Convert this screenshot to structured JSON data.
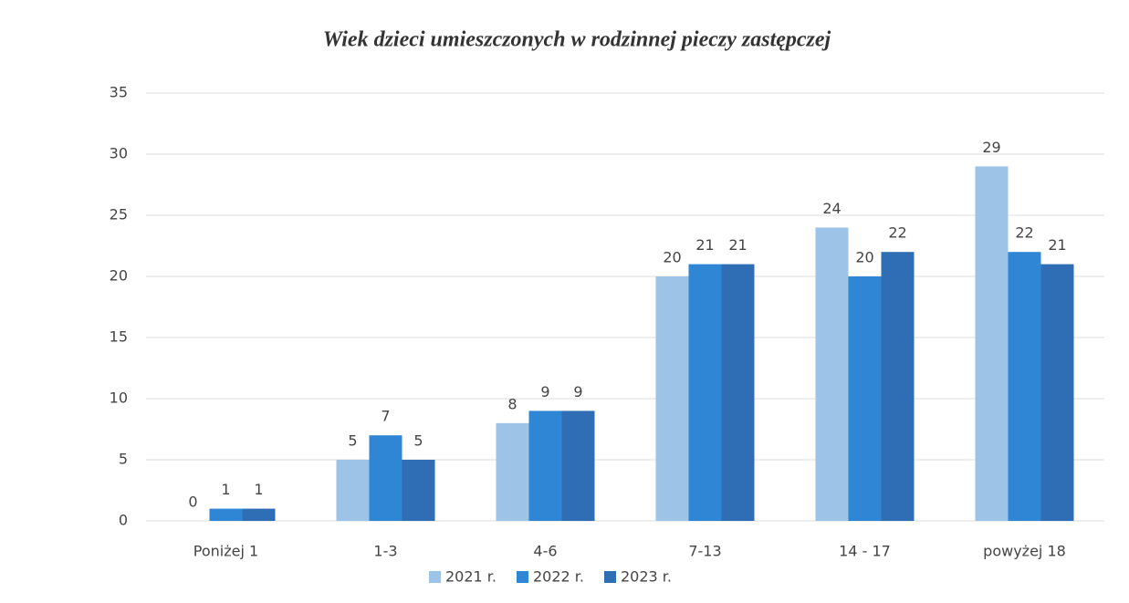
{
  "chart_data": {
    "type": "bar",
    "title": "Wiek dzieci umieszczonych w rodzinnej pieczy zastępczej",
    "categories": [
      "Poniżej 1",
      "1-3",
      "4-6",
      "7-13",
      "14 - 17",
      "powyżej 18"
    ],
    "series": [
      {
        "name": "2021 r.",
        "color": "#9dc3e6",
        "values": [
          0,
          5,
          8,
          20,
          24,
          29
        ]
      },
      {
        "name": "2022 r.",
        "color": "#2e86d4",
        "values": [
          1,
          7,
          9,
          21,
          20,
          22
        ]
      },
      {
        "name": "2023 r.",
        "color": "#2f6db5",
        "values": [
          1,
          5,
          9,
          21,
          22,
          21
        ]
      }
    ],
    "ylim": [
      0,
      35
    ],
    "yticks": [
      0,
      5,
      10,
      15,
      20,
      25,
      30,
      35
    ],
    "grid": true,
    "legend": "bottom"
  }
}
